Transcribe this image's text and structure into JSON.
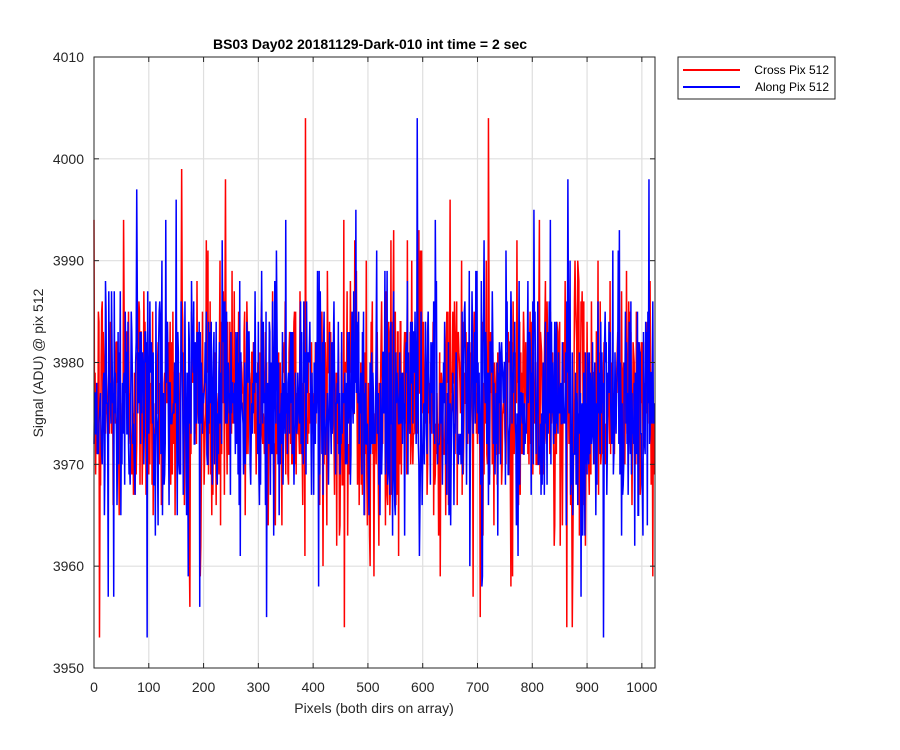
{
  "chart_data": {
    "type": "line",
    "title": "BS03 Day02 20181129-Dark-010 int time = 2 sec",
    "xlabel": "Pixels (both dirs on array)",
    "ylabel": "Signal (ADU) @ pix 512",
    "xlim": [
      0,
      1024
    ],
    "ylim": [
      3950,
      4010
    ],
    "xticks": [
      0,
      100,
      200,
      300,
      400,
      500,
      600,
      700,
      800,
      900,
      1000
    ],
    "yticks": [
      3950,
      3960,
      3970,
      3980,
      3990,
      4000,
      4010
    ],
    "xtick_labels": [
      "0",
      "100",
      "200",
      "300",
      "400",
      "500",
      "600",
      "700",
      "800",
      "900",
      "1000"
    ],
    "ytick_labels": [
      "3950",
      "3960",
      "3970",
      "3980",
      "3990",
      "4000",
      "4010"
    ],
    "grid": true,
    "legend_position": "top-right outside",
    "series": [
      {
        "name": "Cross Pix 512",
        "color": "#ff0000",
        "noise": {
          "mean": 3976.5,
          "min": 3953,
          "max": 4004,
          "samples": 1024
        },
        "peaks": [
          {
            "x": 10,
            "y": 3953
          },
          {
            "x": 54,
            "y": 3994
          },
          {
            "x": 160,
            "y": 3999
          },
          {
            "x": 175,
            "y": 3956
          },
          {
            "x": 240,
            "y": 3998
          },
          {
            "x": 386,
            "y": 4004
          },
          {
            "x": 457,
            "y": 3954
          },
          {
            "x": 650,
            "y": 3996
          },
          {
            "x": 705,
            "y": 3955
          },
          {
            "x": 720,
            "y": 4004
          },
          {
            "x": 863,
            "y": 3954
          },
          {
            "x": 873,
            "y": 3954
          }
        ]
      },
      {
        "name": "Along Pix 512",
        "color": "#0000ff",
        "noise": {
          "mean": 3976,
          "min": 3953,
          "max": 4004,
          "samples": 1024
        },
        "peaks": [
          {
            "x": 97,
            "y": 3953
          },
          {
            "x": 150,
            "y": 3996
          },
          {
            "x": 193,
            "y": 3956
          },
          {
            "x": 315,
            "y": 3955
          },
          {
            "x": 350,
            "y": 3994
          },
          {
            "x": 410,
            "y": 3958
          },
          {
            "x": 590,
            "y": 4004
          },
          {
            "x": 865,
            "y": 3998
          },
          {
            "x": 930,
            "y": 3953
          },
          {
            "x": 1013,
            "y": 3998
          }
        ]
      }
    ]
  }
}
